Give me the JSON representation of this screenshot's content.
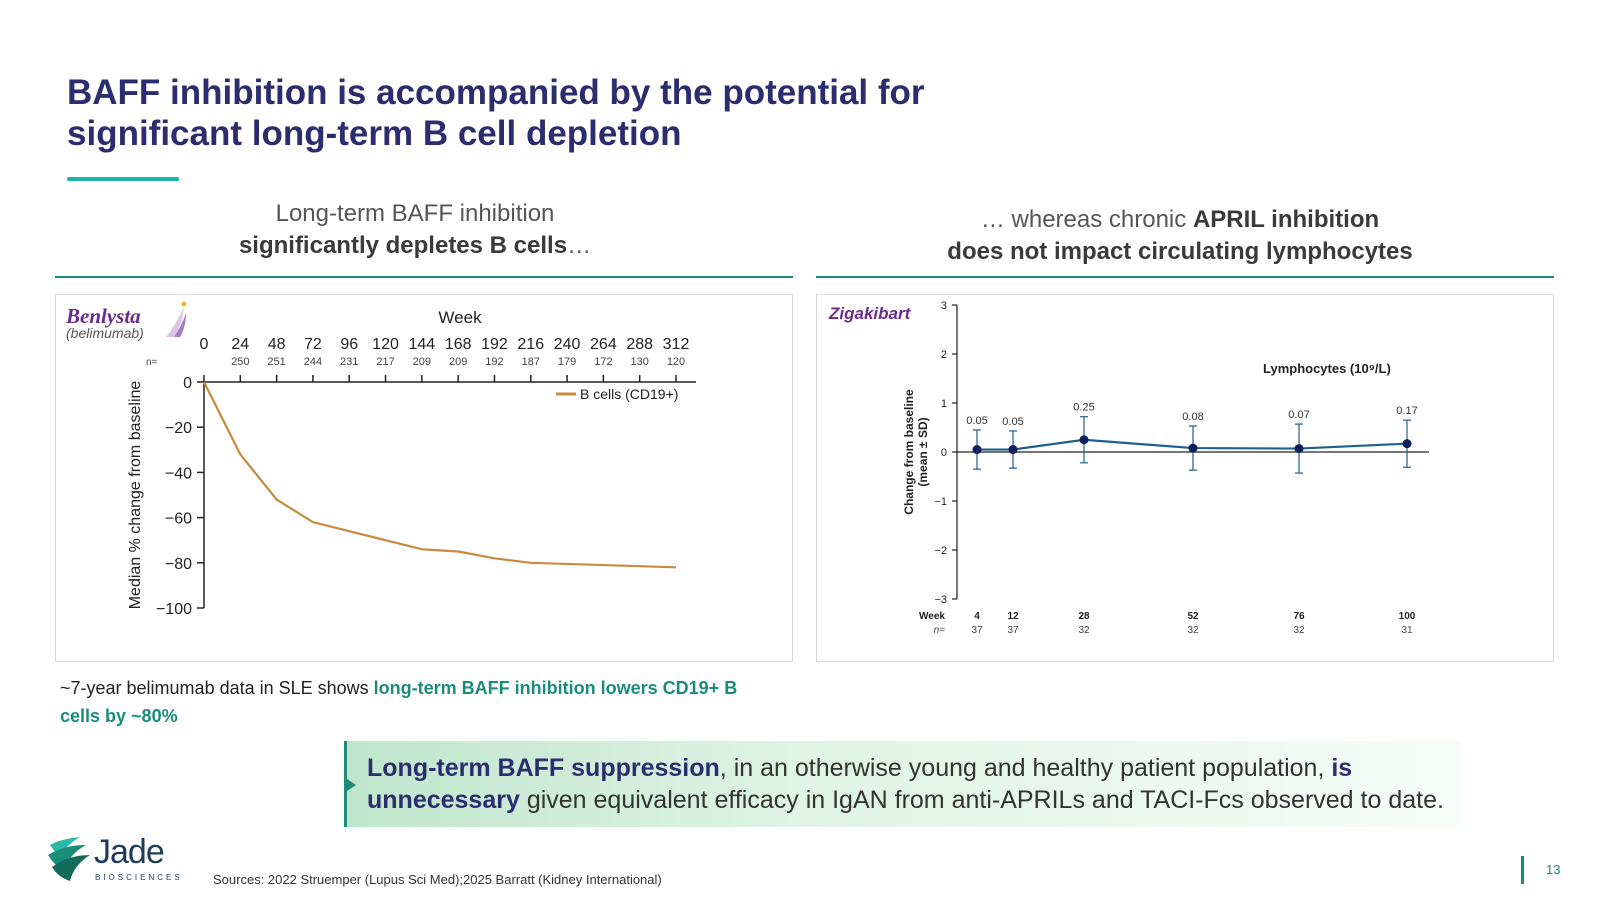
{
  "title": {
    "line1": "BAFF inhibition is accompanied by the potential for",
    "line2": "significant long-term B cell depletion"
  },
  "left_panel": {
    "heading_line1": "Long-term BAFF inhibition",
    "heading_bold": "significantly depletes B cells",
    "heading_tail": "…",
    "brand": "Benlysta",
    "brand_sub": "(belimumab)"
  },
  "right_panel": {
    "heading_prefix": "… whereas chronic ",
    "heading_bold1": "APRIL inhibition",
    "heading_line2": "does not impact circulating lymphocytes",
    "brand": "Zigakibart"
  },
  "caption": {
    "plain": "~7-year belimumab data in SLE shows ",
    "highlight": "long-term BAFF inhibition lowers CD19+ B cells by ~80%"
  },
  "callout": {
    "bold1": "Long-term BAFF suppression",
    "text1": ", in an otherwise young and healthy patient population, ",
    "bold2": "is unnecessary",
    "text2": " given equivalent efficacy in IgAN from anti-APRILs and TACI-Fcs observed to date."
  },
  "logo": {
    "word": "Jade",
    "sub": "BIOSCIENCES"
  },
  "sources": "Sources: 2022 Struemper (Lupus Sci Med);2025  Barratt (Kidney International)",
  "page_number": "13",
  "colors": {
    "title": "#2b2d6e",
    "accent_teal": "#1a8c7a",
    "bcell_line": "#c98a3e",
    "lymph_line": "#1f5f8a",
    "lymph_marker": "#0d1f5c",
    "brand_purple": "#6b2a8c"
  },
  "chart_data": [
    {
      "type": "line",
      "title": "",
      "xlabel": "Week",
      "ylabel": "Median % change from baseline",
      "x": [
        0,
        24,
        48,
        72,
        96,
        120,
        144,
        168,
        192,
        216,
        240,
        264,
        288,
        312
      ],
      "n": [
        "",
        "250",
        "251",
        "244",
        "231",
        "217",
        "209",
        "209",
        "192",
        "187",
        "179",
        "172",
        "130",
        "120"
      ],
      "n_label": "n=",
      "xlim": [
        0,
        312
      ],
      "ylim": [
        -100,
        0
      ],
      "yticks": [
        0,
        -20,
        -40,
        -60,
        -80,
        -100
      ],
      "x_axis_position": "top",
      "legend_position": "top-right",
      "series": [
        {
          "name": "B cells (CD19+)",
          "values": [
            0,
            -32,
            -52,
            -62,
            -66,
            -70,
            -74,
            -75,
            -78,
            -80,
            -80.5,
            -81,
            -81.5,
            -82
          ]
        }
      ]
    },
    {
      "type": "line",
      "title": "",
      "xlabel": "Week",
      "ylabel": "Change from baseline (mean ± SD)",
      "annotation": "Lymphocytes (10⁹/L)",
      "x": [
        4,
        12,
        28,
        52,
        76,
        100
      ],
      "n": [
        "37",
        "37",
        "32",
        "32",
        "32",
        "31"
      ],
      "n_label": "n=",
      "xlim": [
        0,
        104
      ],
      "ylim": [
        -3,
        3
      ],
      "yticks": [
        3,
        2,
        1,
        0,
        -1,
        -2,
        -3
      ],
      "series": [
        {
          "name": "",
          "values": [
            0.05,
            0.05,
            0.25,
            0.08,
            0.07,
            0.17
          ],
          "error_sd": [
            0.4,
            0.38,
            0.47,
            0.45,
            0.5,
            0.48
          ],
          "data_labels": [
            "0.05",
            "0.05",
            "0.25",
            "0.08",
            "0.07",
            "0.17"
          ]
        }
      ]
    }
  ]
}
